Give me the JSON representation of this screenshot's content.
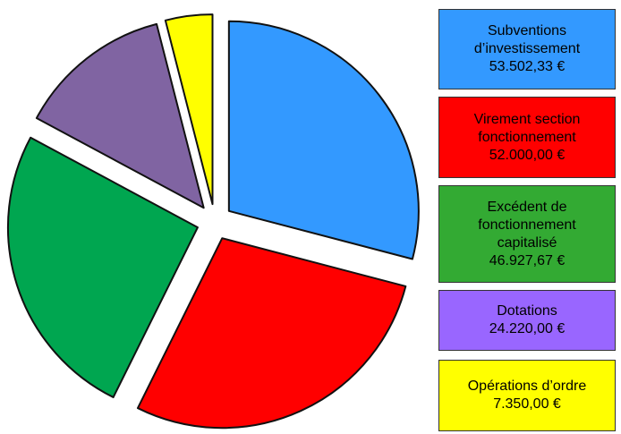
{
  "chart_data": {
    "type": "pie",
    "categories": [
      "Subventions d’investissement",
      "Virement section fonctionnement",
      "Excédent de fonctionnement capitalisé",
      "Dotations",
      "Opérations d’ordre"
    ],
    "values": [
      53502.33,
      52000,
      46927.67,
      24220,
      7350
    ],
    "value_labels": [
      "53.502,33 €",
      "52.000,00 €",
      "46.927,67 €",
      "24.220,00 €",
      "7.350,00 €"
    ],
    "colors": [
      "#3399ff",
      "#ff0000",
      "#00a650",
      "#8064a2",
      "#ffff00"
    ],
    "legend_colors": [
      "#3399ff",
      "#ff0000",
      "#33aa33",
      "#9966ff",
      "#ffff00"
    ],
    "exploded": true,
    "legend": "right"
  }
}
